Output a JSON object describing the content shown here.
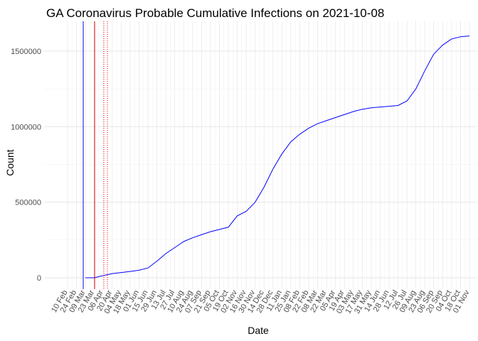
{
  "chart_data": {
    "type": "line",
    "title": "GA Coronavirus Probable Cumulative Infections on 2021-10-08",
    "x_label": "Date",
    "y_label": "Count",
    "categories": [
      "10 Feb",
      "24 Feb",
      "09 Mar",
      "23 Mar",
      "06 Apr",
      "20 Apr",
      "04 May",
      "18 May",
      "01 Jun",
      "15 Jun",
      "29 Jun",
      "13 Jul",
      "27 Jul",
      "10 Aug",
      "24 Aug",
      "07 Sep",
      "21 Sep",
      "05 Oct",
      "19 Oct",
      "02 Nov",
      "16 Nov",
      "30 Nov",
      "14 Dec",
      "28 Dec",
      "11 Jan",
      "25 Jan",
      "08 Feb",
      "22 Feb",
      "08 Mar",
      "22 Mar",
      "05 Apr",
      "19 Apr",
      "03 May",
      "17 May",
      "31 May",
      "14 Jun",
      "28 Jun",
      "12 Jul",
      "26 Jul",
      "09 Aug",
      "23 Aug",
      "06 Sep",
      "20 Sep",
      "04 Oct",
      "18 Oct",
      "01 Nov"
    ],
    "series": [
      {
        "color": "#0000ff",
        "values": [
          null,
          null,
          0,
          0,
          15000,
          28000,
          35000,
          42000,
          50000,
          65000,
          110000,
          160000,
          200000,
          240000,
          265000,
          285000,
          305000,
          320000,
          335000,
          410000,
          440000,
          500000,
          600000,
          720000,
          820000,
          900000,
          950000,
          990000,
          1020000,
          1040000,
          1060000,
          1080000,
          1100000,
          1115000,
          1125000,
          1130000,
          1135000,
          1140000,
          1170000,
          1250000,
          1370000,
          1480000,
          1540000,
          1580000,
          1595000,
          1600000
        ]
      }
    ],
    "ylim": [
      -75000,
      1697000
    ],
    "yticks": [
      0,
      500000,
      1000000,
      1500000
    ],
    "grid": true
  }
}
